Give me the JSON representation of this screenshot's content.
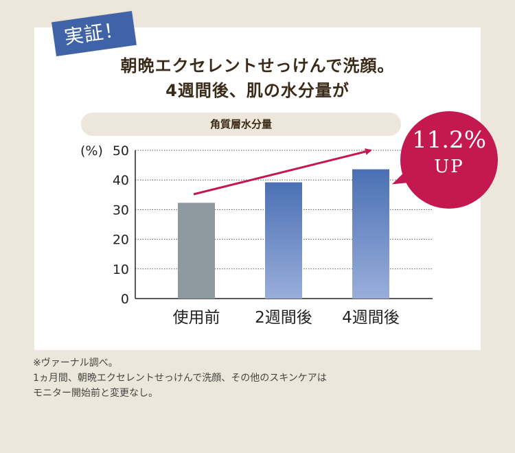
{
  "tag": "実証！",
  "title_line1": "朝晩エクセレントせっけんで洗顔。",
  "title_line2": "4週間後、肌の水分量が",
  "chart_data": {
    "type": "bar",
    "title": "角質層水分量",
    "ylabel": "(%)",
    "ylim": [
      0,
      50
    ],
    "yticks": [
      "0",
      "10",
      "20",
      "30",
      "40",
      "50"
    ],
    "categories": [
      "使用前",
      "2週間後",
      "4週間後"
    ],
    "values": [
      32.3,
      39.2,
      43.6
    ],
    "colors": {
      "before": "#8d9aa0",
      "after_top": "#4a70b4",
      "after_bottom": "#9aaedb",
      "arrow": "#c31850"
    },
    "grid": true,
    "annotation": {
      "value": "11.2%",
      "label": "UP"
    }
  },
  "notes": [
    "※ヴァーナル調べ。",
    "1ヵ月間、朝晩エクセレントせっけんで洗顔、その他のスキンケアは",
    "モニター開始前と変更なし。"
  ]
}
